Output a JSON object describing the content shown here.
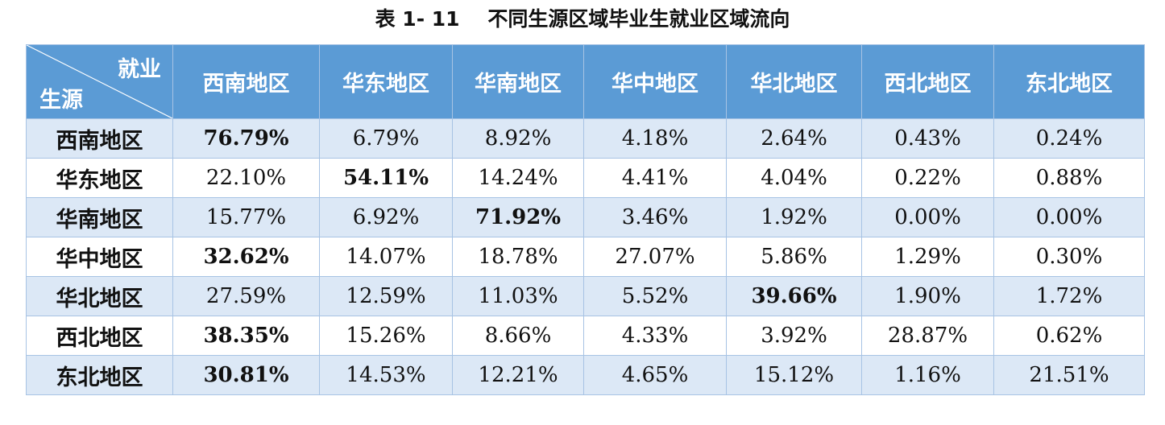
{
  "caption": "表 1- 11    不同生源区域毕业生就业区域流向",
  "colors": {
    "header_bg": "#5b9bd5",
    "stripe_bg": "#dce8f6",
    "border": "#a7c3e4"
  },
  "table": {
    "corner_top": "就业",
    "corner_bottom": "生源",
    "columns": [
      "西南地区",
      "华东地区",
      "华南地区",
      "华中地区",
      "华北地区",
      "西北地区",
      "东北地区"
    ],
    "rows": [
      {
        "label": "西南地区",
        "cells": [
          {
            "v": "76.79%",
            "bold": true
          },
          {
            "v": "6.79%"
          },
          {
            "v": "8.92%"
          },
          {
            "v": "4.18%"
          },
          {
            "v": "2.64%"
          },
          {
            "v": "0.43%"
          },
          {
            "v": "0.24%"
          }
        ]
      },
      {
        "label": "华东地区",
        "cells": [
          {
            "v": "22.10%"
          },
          {
            "v": "54.11%",
            "bold": true
          },
          {
            "v": "14.24%"
          },
          {
            "v": "4.41%"
          },
          {
            "v": "4.04%"
          },
          {
            "v": "0.22%"
          },
          {
            "v": "0.88%"
          }
        ]
      },
      {
        "label": "华南地区",
        "cells": [
          {
            "v": "15.77%"
          },
          {
            "v": "6.92%"
          },
          {
            "v": "71.92%",
            "bold": true
          },
          {
            "v": "3.46%"
          },
          {
            "v": "1.92%"
          },
          {
            "v": "0.00%"
          },
          {
            "v": "0.00%"
          }
        ]
      },
      {
        "label": "华中地区",
        "cells": [
          {
            "v": "32.62%",
            "bold": true
          },
          {
            "v": "14.07%"
          },
          {
            "v": "18.78%"
          },
          {
            "v": "27.07%"
          },
          {
            "v": "5.86%"
          },
          {
            "v": "1.29%"
          },
          {
            "v": "0.30%"
          }
        ]
      },
      {
        "label": "华北地区",
        "cells": [
          {
            "v": "27.59%"
          },
          {
            "v": "12.59%"
          },
          {
            "v": "11.03%"
          },
          {
            "v": "5.52%"
          },
          {
            "v": "39.66%",
            "bold": true
          },
          {
            "v": "1.90%"
          },
          {
            "v": "1.72%"
          }
        ]
      },
      {
        "label": "西北地区",
        "cells": [
          {
            "v": "38.35%",
            "bold": true
          },
          {
            "v": "15.26%"
          },
          {
            "v": "8.66%"
          },
          {
            "v": "4.33%"
          },
          {
            "v": "3.92%"
          },
          {
            "v": "28.87%"
          },
          {
            "v": "0.62%"
          }
        ]
      },
      {
        "label": "东北地区",
        "cells": [
          {
            "v": "30.81%",
            "bold": true
          },
          {
            "v": "14.53%"
          },
          {
            "v": "12.21%"
          },
          {
            "v": "4.65%"
          },
          {
            "v": "15.12%"
          },
          {
            "v": "1.16%"
          },
          {
            "v": "21.51%"
          }
        ]
      }
    ]
  }
}
